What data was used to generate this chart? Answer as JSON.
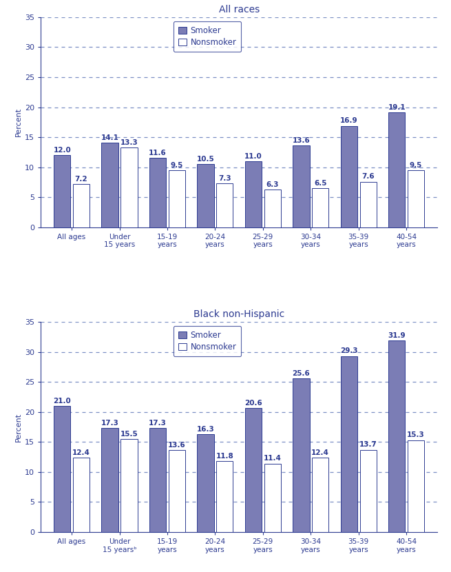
{
  "title_top": "All races",
  "title_bottom": "Black non-Hispanic",
  "categories": [
    "All ages",
    "Under\n15 years",
    "15-19\nyears",
    "20-24\nyears",
    "25-29\nyears",
    "30-34\nyears",
    "35-39\nyears",
    "40-54\nyears"
  ],
  "categories_bottom": [
    "All ages",
    "Under\n15 yearsᵇ",
    "15-19\nyears",
    "20-24\nyears",
    "25-29\nyears",
    "30-34\nyears",
    "35-39\nyears",
    "40-54\nyears"
  ],
  "smoker_top": [
    12.0,
    14.1,
    11.6,
    10.5,
    11.0,
    13.6,
    16.9,
    19.1
  ],
  "nonsmoker_top": [
    7.2,
    13.3,
    9.5,
    7.3,
    6.3,
    6.5,
    7.6,
    9.5
  ],
  "smoker_bottom": [
    21.0,
    17.3,
    17.3,
    16.3,
    20.6,
    25.6,
    29.3,
    31.9
  ],
  "nonsmoker_bottom": [
    12.4,
    15.5,
    13.6,
    11.8,
    11.4,
    12.4,
    13.7,
    15.3
  ],
  "smoker_color": "#7B7DB5",
  "nonsmoker_color": "#FFFFFF",
  "bar_edge_color": "#2B3990",
  "text_color": "#2B3990",
  "grid_color": "#7B8FC4",
  "ylabel": "Percent",
  "ylim": [
    0,
    35
  ],
  "yticks": [
    0,
    5,
    10,
    15,
    20,
    25,
    30,
    35
  ],
  "grid_yticks": [
    5,
    10,
    15,
    20,
    25,
    30,
    35
  ],
  "legend_labels": [
    "Smoker",
    "Nonsmoker"
  ],
  "bar_width": 0.35,
  "bar_gap": 0.05,
  "value_fontsize": 7.5,
  "tick_fontsize": 7.5,
  "ylabel_fontsize": 8.0,
  "title_fontsize": 10,
  "legend_fontsize": 8.5
}
